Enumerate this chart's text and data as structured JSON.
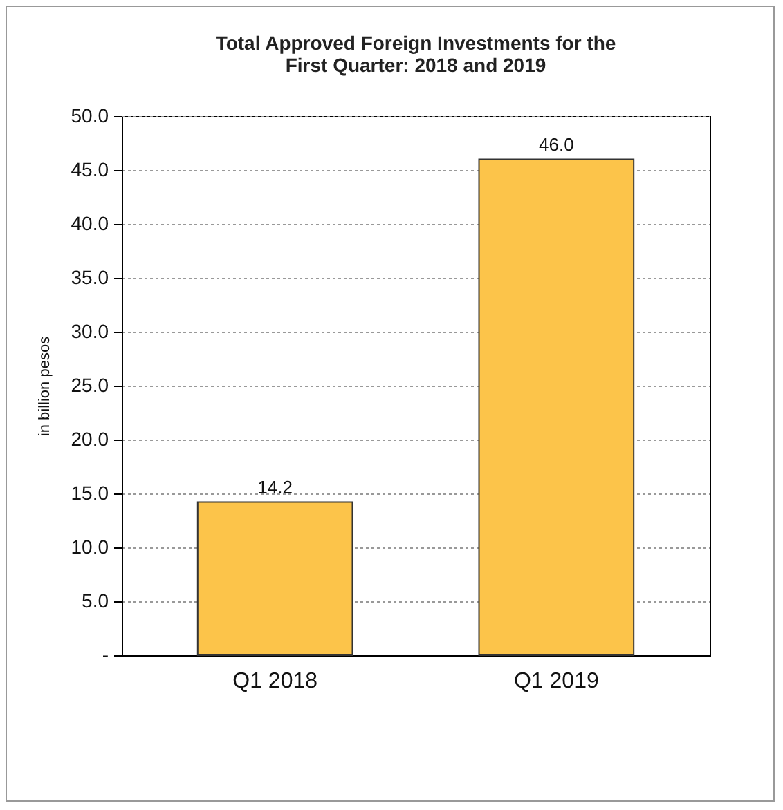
{
  "chart_data": {
    "type": "bar",
    "title": [
      "Total Approved Foreign Investments for the",
      "First Quarter: 2018 and 2019"
    ],
    "ylabel": "in billion pesos",
    "categories": [
      "Q1 2018",
      "Q1 2019"
    ],
    "values": [
      14.2,
      46.0
    ],
    "color": "#fcc44a",
    "ylim": [
      0,
      50
    ],
    "yticks": [
      {
        "value": 0,
        "label": "-"
      },
      {
        "value": 5,
        "label": "5.0"
      },
      {
        "value": 10,
        "label": "10.0"
      },
      {
        "value": 15,
        "label": "15.0"
      },
      {
        "value": 20,
        "label": "20.0"
      },
      {
        "value": 25,
        "label": "25.0"
      },
      {
        "value": 30,
        "label": "30.0"
      },
      {
        "value": 35,
        "label": "35.0"
      },
      {
        "value": 40,
        "label": "40.0"
      },
      {
        "value": 45,
        "label": "45.0"
      },
      {
        "value": 50,
        "label": "50.0"
      }
    ],
    "value_labels": [
      "14.2",
      "46.0"
    ],
    "grid": "y"
  }
}
